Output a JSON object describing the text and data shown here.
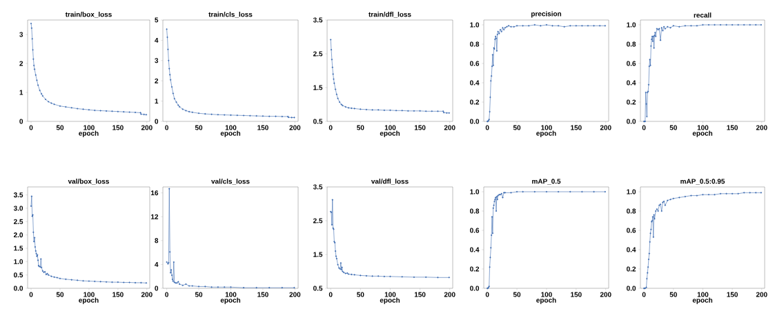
{
  "chart_data": [
    {
      "type": "line",
      "title": "train/box_loss",
      "xlabel": "epoch",
      "color": "#3a6ab0",
      "marker": "circle",
      "xlim": [
        -6,
        205
      ],
      "ylim": [
        0,
        3.5
      ],
      "xticks": [
        0,
        50,
        100,
        150,
        200
      ],
      "yticks": [
        0,
        1,
        2,
        3
      ],
      "x": [
        0,
        1,
        2,
        3,
        4,
        5,
        6,
        8,
        10,
        12,
        15,
        18,
        20,
        25,
        30,
        35,
        40,
        50,
        60,
        70,
        80,
        90,
        100,
        110,
        120,
        130,
        140,
        150,
        160,
        170,
        180,
        189,
        190,
        195,
        199
      ],
      "values": [
        3.38,
        3.22,
        2.85,
        2.47,
        2.15,
        1.93,
        1.8,
        1.6,
        1.42,
        1.25,
        1.07,
        0.95,
        0.88,
        0.76,
        0.68,
        0.63,
        0.59,
        0.53,
        0.5,
        0.47,
        0.44,
        0.42,
        0.4,
        0.38,
        0.37,
        0.36,
        0.35,
        0.34,
        0.33,
        0.32,
        0.31,
        0.3,
        0.25,
        0.24,
        0.23
      ]
    },
    {
      "type": "line",
      "title": "train/cls_loss",
      "xlabel": "epoch",
      "color": "#3a6ab0",
      "marker": "circle",
      "xlim": [
        -6,
        205
      ],
      "ylim": [
        0,
        5
      ],
      "xticks": [
        0,
        50,
        100,
        150,
        200
      ],
      "yticks": [
        0,
        1,
        2,
        3,
        4,
        5
      ],
      "x": [
        0,
        1,
        2,
        3,
        4,
        5,
        6,
        8,
        10,
        12,
        15,
        18,
        20,
        25,
        30,
        35,
        40,
        50,
        60,
        70,
        80,
        90,
        100,
        110,
        120,
        130,
        140,
        150,
        160,
        170,
        180,
        189,
        190,
        195,
        199
      ],
      "values": [
        4.55,
        4.15,
        3.55,
        3.0,
        2.6,
        2.3,
        2.05,
        1.7,
        1.38,
        1.12,
        0.95,
        0.8,
        0.72,
        0.6,
        0.53,
        0.48,
        0.45,
        0.4,
        0.37,
        0.35,
        0.33,
        0.32,
        0.31,
        0.3,
        0.29,
        0.28,
        0.27,
        0.26,
        0.25,
        0.25,
        0.24,
        0.24,
        0.2,
        0.19,
        0.19
      ]
    },
    {
      "type": "line",
      "title": "train/dfl_loss",
      "xlabel": "epoch",
      "color": "#3a6ab0",
      "marker": "circle",
      "xlim": [
        -6,
        205
      ],
      "ylim": [
        0.5,
        3.5
      ],
      "xticks": [
        0,
        50,
        100,
        150,
        200
      ],
      "yticks": [
        0.5,
        1.5,
        2.5,
        3.5
      ],
      "x": [
        0,
        1,
        2,
        3,
        4,
        5,
        6,
        8,
        10,
        12,
        15,
        18,
        20,
        25,
        30,
        35,
        40,
        50,
        60,
        70,
        80,
        90,
        100,
        110,
        120,
        130,
        140,
        150,
        160,
        170,
        180,
        189,
        190,
        195,
        199
      ],
      "values": [
        2.92,
        2.62,
        2.33,
        2.1,
        1.9,
        1.75,
        1.63,
        1.45,
        1.3,
        1.18,
        1.07,
        1.0,
        0.97,
        0.93,
        0.9,
        0.89,
        0.88,
        0.86,
        0.85,
        0.84,
        0.84,
        0.83,
        0.83,
        0.82,
        0.82,
        0.81,
        0.81,
        0.81,
        0.8,
        0.8,
        0.8,
        0.8,
        0.76,
        0.75,
        0.75
      ]
    },
    {
      "type": "line",
      "title": "precision",
      "xlabel": "epoch",
      "color": "#3a6ab0",
      "marker": "circle",
      "xlim": [
        -6,
        205
      ],
      "ylim": [
        0,
        1.05
      ],
      "xticks": [
        0,
        50,
        100,
        150,
        200
      ],
      "yticks": [
        {
          "value": 0,
          "label": "0.0"
        },
        0.2,
        0.4,
        0.6,
        0.8,
        {
          "value": 1,
          "label": "1.0"
        }
      ],
      "x": [
        0,
        1,
        2,
        3,
        4,
        5,
        6,
        7,
        8,
        9,
        10,
        11,
        12,
        13,
        14,
        15,
        16,
        17,
        18,
        20,
        22,
        24,
        26,
        28,
        30,
        33,
        36,
        40,
        45,
        50,
        60,
        70,
        80,
        90,
        100,
        110,
        120,
        130,
        140,
        150,
        160,
        170,
        180,
        190,
        199
      ],
      "values": [
        0,
        0,
        0.01,
        0.02,
        0.1,
        0.25,
        0.42,
        0.47,
        0.57,
        0.69,
        0.58,
        0.76,
        0.75,
        0.85,
        0.88,
        0.86,
        0.73,
        0.9,
        0.93,
        0.91,
        0.95,
        0.93,
        0.97,
        0.95,
        0.97,
        0.98,
        0.99,
        0.98,
        0.98,
        0.99,
        0.99,
        0.99,
        1.0,
        0.99,
        1.0,
        0.99,
        0.99,
        0.98,
        0.99,
        0.99,
        0.99,
        0.99,
        0.99,
        0.99,
        0.99
      ]
    },
    {
      "type": "line",
      "title": "recall",
      "xlabel": "epoch",
      "color": "#3a6ab0",
      "marker": "circle",
      "xlim": [
        -6,
        205
      ],
      "ylim": [
        0,
        1.05
      ],
      "xticks": [
        0,
        50,
        100,
        150,
        200
      ],
      "yticks": [
        {
          "value": 0,
          "label": "0.0"
        },
        0.2,
        0.4,
        0.6,
        0.8,
        {
          "value": 1,
          "label": "1.0"
        }
      ],
      "x": [
        0,
        1,
        2,
        3,
        4,
        5,
        6,
        7,
        8,
        9,
        10,
        11,
        12,
        13,
        14,
        15,
        16,
        17,
        18,
        19,
        20,
        22,
        24,
        26,
        28,
        30,
        32,
        34,
        36,
        40,
        45,
        50,
        60,
        70,
        80,
        90,
        100,
        110,
        120,
        130,
        140,
        150,
        160,
        170,
        180,
        190,
        199
      ],
      "values": [
        0,
        0,
        0,
        0.3,
        0.18,
        0.05,
        0.3,
        0.31,
        0.38,
        0.57,
        0.64,
        0.58,
        0.78,
        0.85,
        0.88,
        0.83,
        0.88,
        0.76,
        0.89,
        0.92,
        0.88,
        0.96,
        0.95,
        0.96,
        0.84,
        0.97,
        0.94,
        0.98,
        0.96,
        0.98,
        0.97,
        0.99,
        0.98,
        0.99,
        0.99,
        0.99,
        1.0,
        1.0,
        1.0,
        1.0,
        1.0,
        1.0,
        1.0,
        1.0,
        1.0,
        1.0,
        1.0
      ]
    },
    {
      "type": "line",
      "title": "val/box_loss",
      "xlabel": "epoch",
      "color": "#3a6ab0",
      "marker": "circle",
      "xlim": [
        -6,
        205
      ],
      "ylim": [
        0,
        3.8
      ],
      "xticks": [
        0,
        50,
        100,
        150,
        200
      ],
      "yticks": [
        {
          "value": 0,
          "label": "0.0"
        },
        0.5,
        {
          "value": 1,
          "label": "1.0"
        },
        1.5,
        {
          "value": 2,
          "label": "2.0"
        },
        2.5,
        {
          "value": 3,
          "label": "3.0"
        },
        3.5
      ],
      "x": [
        0,
        1,
        2,
        3,
        4,
        5,
        6,
        7,
        8,
        9,
        10,
        11,
        12,
        13,
        14,
        16,
        17,
        18,
        20,
        22,
        24,
        26,
        28,
        30,
        35,
        40,
        45,
        50,
        60,
        70,
        80,
        90,
        100,
        110,
        120,
        130,
        140,
        150,
        160,
        170,
        180,
        190,
        199
      ],
      "values": [
        3.08,
        3.45,
        2.7,
        2.75,
        2.1,
        1.75,
        1.9,
        1.55,
        1.4,
        1.3,
        1.2,
        1.25,
        1.05,
        0.85,
        0.82,
        0.8,
        1.1,
        0.78,
        0.65,
        0.6,
        0.62,
        0.52,
        0.55,
        0.5,
        0.45,
        0.42,
        0.4,
        0.37,
        0.34,
        0.32,
        0.3,
        0.28,
        0.27,
        0.26,
        0.25,
        0.24,
        0.23,
        0.23,
        0.22,
        0.22,
        0.21,
        0.21,
        0.2
      ]
    },
    {
      "type": "line",
      "title": "val/cls_loss",
      "xlabel": "epoch",
      "color": "#3a6ab0",
      "marker": "circle",
      "xlim": [
        -6,
        205
      ],
      "ylim": [
        0,
        17
      ],
      "xticks": [
        0,
        50,
        100,
        150,
        200
      ],
      "yticks": [
        0,
        4,
        8,
        12,
        16
      ],
      "x": [
        0,
        1,
        2,
        3,
        4,
        5,
        6,
        7,
        8,
        9,
        10,
        11,
        12,
        14,
        16,
        18,
        20,
        25,
        30,
        35,
        40,
        50,
        60,
        70,
        80,
        90,
        100,
        120,
        140,
        160,
        180,
        199
      ],
      "values": [
        4.4,
        null,
        4.1,
        4.3,
        16.7,
        6.1,
        2.6,
        3.1,
        2.2,
        1.5,
        1.2,
        4.4,
        1.0,
        0.9,
        0.9,
        1.1,
        0.7,
        0.5,
        0.7,
        0.4,
        0.4,
        0.3,
        0.3,
        0.2,
        0.2,
        0.2,
        0.2,
        0.1,
        0.1,
        0.1,
        0.1,
        0.1
      ]
    },
    {
      "type": "line",
      "title": "val/dfl_loss",
      "xlabel": "epoch",
      "color": "#3a6ab0",
      "marker": "circle",
      "xlim": [
        -6,
        205
      ],
      "ylim": [
        0.5,
        3.5
      ],
      "xticks": [
        0,
        50,
        100,
        150,
        200
      ],
      "yticks": [
        0.5,
        1.5,
        2.5,
        3.5
      ],
      "x": [
        0,
        1,
        2,
        3,
        4,
        5,
        6,
        7,
        8,
        9,
        10,
        12,
        14,
        16,
        17,
        18,
        19,
        20,
        22,
        25,
        28,
        30,
        35,
        40,
        50,
        60,
        70,
        80,
        90,
        100,
        120,
        140,
        160,
        180,
        199
      ],
      "values": [
        2.77,
        2.75,
        2.38,
        3.12,
        2.28,
        2.25,
        1.88,
        1.85,
        1.6,
        1.45,
        1.38,
        1.2,
        1.1,
        1.07,
        1.25,
        1.05,
        1.12,
        1.0,
        0.97,
        0.94,
        0.95,
        0.92,
        0.91,
        0.9,
        0.88,
        0.87,
        0.86,
        0.86,
        0.85,
        0.85,
        0.84,
        0.83,
        0.83,
        0.82,
        0.82
      ]
    },
    {
      "type": "line",
      "title": "mAP_0.5",
      "xlabel": "epoch",
      "color": "#3a6ab0",
      "marker": "circle",
      "xlim": [
        -6,
        205
      ],
      "ylim": [
        0,
        1.05
      ],
      "xticks": [
        0,
        50,
        100,
        150,
        200
      ],
      "yticks": [
        {
          "value": 0,
          "label": "0.0"
        },
        0.2,
        0.4,
        0.6,
        0.8,
        {
          "value": 1,
          "label": "1.0"
        }
      ],
      "x": [
        0,
        1,
        2,
        3,
        4,
        5,
        6,
        7,
        8,
        9,
        10,
        11,
        12,
        13,
        14,
        15,
        16,
        17,
        18,
        20,
        22,
        24,
        26,
        28,
        30,
        40,
        50,
        60,
        80,
        100,
        120,
        140,
        160,
        180,
        199
      ],
      "values": [
        0,
        0,
        0.01,
        0.02,
        0.22,
        0.32,
        0.42,
        0.55,
        0.74,
        0.57,
        0.83,
        0.86,
        0.9,
        0.92,
        0.94,
        0.8,
        0.95,
        0.92,
        0.96,
        0.97,
        0.97,
        0.98,
        0.94,
        0.99,
        0.99,
        0.99,
        1.0,
        1.0,
        1.0,
        1.0,
        1.0,
        1.0,
        1.0,
        1.0,
        1.0
      ]
    },
    {
      "type": "line",
      "title": "mAP_0.5:0.95",
      "xlabel": "epoch",
      "color": "#3a6ab0",
      "marker": "circle",
      "xlim": [
        -6,
        205
      ],
      "ylim": [
        0,
        1.05
      ],
      "xticks": [
        0,
        50,
        100,
        150,
        200
      ],
      "yticks": [
        {
          "value": 0,
          "label": "0.0"
        },
        0.2,
        0.4,
        0.6,
        0.8,
        {
          "value": 1,
          "label": "1.0"
        }
      ],
      "x": [
        0,
        1,
        2,
        3,
        4,
        5,
        6,
        7,
        8,
        9,
        10,
        11,
        12,
        13,
        14,
        15,
        16,
        17,
        18,
        20,
        22,
        24,
        26,
        28,
        30,
        32,
        34,
        36,
        40,
        45,
        50,
        60,
        70,
        80,
        90,
        100,
        110,
        120,
        130,
        140,
        150,
        160,
        170,
        180,
        190,
        199
      ],
      "values": [
        0,
        0,
        0,
        null,
        0.01,
        0.1,
        0.16,
        0.22,
        0.3,
        0.36,
        0.48,
        0.57,
        0.61,
        0.69,
        0.7,
        0.74,
        0.53,
        0.76,
        0.72,
        0.8,
        0.82,
        0.8,
        0.86,
        0.87,
        0.8,
        0.89,
        0.9,
        0.86,
        0.91,
        0.92,
        0.93,
        0.94,
        0.95,
        0.96,
        0.96,
        0.97,
        0.97,
        0.97,
        0.98,
        0.98,
        0.98,
        0.98,
        0.99,
        0.99,
        0.99,
        0.99
      ]
    }
  ]
}
